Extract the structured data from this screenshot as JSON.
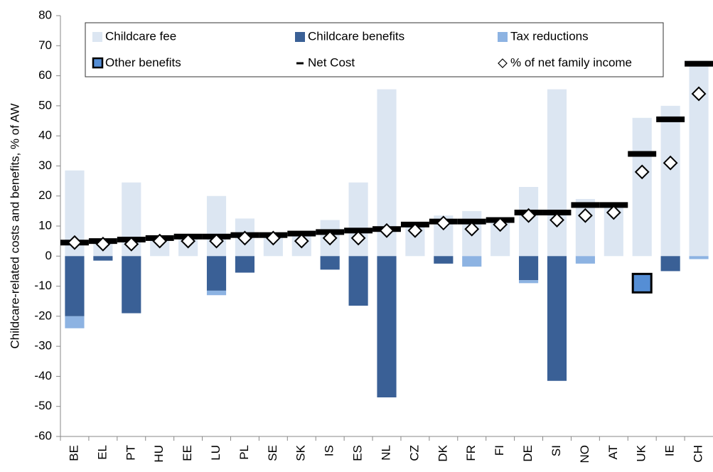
{
  "chart_data": {
    "type": "bar",
    "y_label": "Childcare-related costs and benefits, % of AW",
    "categories": [
      "BE",
      "EL",
      "PT",
      "HU",
      "EE",
      "LU",
      "PL",
      "SE",
      "SK",
      "IS",
      "ES",
      "NL",
      "CZ",
      "DK",
      "FR",
      "FI",
      "DE",
      "SI",
      "NO",
      "AT",
      "UK",
      "IE",
      "CH"
    ],
    "series": [
      {
        "name": "Childcare fee",
        "color": "#dce6f2",
        "style": "bar",
        "values": [
          28.5,
          5,
          24.5,
          6,
          6.5,
          20,
          12.5,
          7,
          7.5,
          12,
          24.5,
          55.5,
          10.5,
          13.5,
          15,
          12,
          23,
          55.5,
          19,
          17,
          46,
          50,
          65
        ]
      },
      {
        "name": "Childcare benefits",
        "color": "#3a6096",
        "style": "bar",
        "values": [
          -20,
          -1.5,
          -19,
          0,
          0,
          -11.5,
          -5.5,
          0,
          0,
          -4.5,
          -16.5,
          -47,
          0,
          -2.5,
          0,
          0,
          -8,
          -41.5,
          0,
          0,
          0,
          -5,
          0
        ]
      },
      {
        "name": "Tax reductions",
        "color": "#8db3e2",
        "style": "bar",
        "values": [
          -4,
          0,
          0,
          0,
          0,
          -1.5,
          0,
          0,
          0,
          0,
          0,
          0,
          0,
          0,
          -3.5,
          0,
          -1,
          0,
          -2.5,
          0,
          0,
          0,
          -1
        ]
      },
      {
        "name": "Other benefits",
        "color": "#558ed5",
        "style": "square",
        "values": [
          null,
          null,
          null,
          null,
          null,
          null,
          null,
          null,
          null,
          null,
          null,
          null,
          null,
          null,
          null,
          null,
          null,
          null,
          null,
          null,
          -9,
          null,
          null
        ]
      },
      {
        "name": "Net Cost",
        "color": "#000000",
        "style": "dash",
        "values": [
          4.5,
          5,
          5.5,
          6,
          6.5,
          6.5,
          7,
          7,
          7.5,
          8,
          8.5,
          9,
          10.5,
          11.5,
          11.5,
          12,
          14.5,
          14.5,
          17,
          17,
          34,
          45.5,
          64
        ]
      },
      {
        "name": "% of net family income",
        "color": "#ffffff",
        "style": "diamond",
        "values": [
          4.5,
          4,
          4,
          5,
          5,
          5,
          6,
          6,
          5,
          6,
          6,
          8.5,
          8.5,
          11,
          9,
          10.5,
          13.5,
          12,
          13.5,
          14.5,
          28,
          31,
          54
        ]
      }
    ],
    "ylim": [
      -60,
      80
    ],
    "yticks": [
      -60,
      -50,
      -40,
      -30,
      -20,
      -10,
      0,
      10,
      20,
      30,
      40,
      50,
      60,
      70,
      80
    ]
  }
}
